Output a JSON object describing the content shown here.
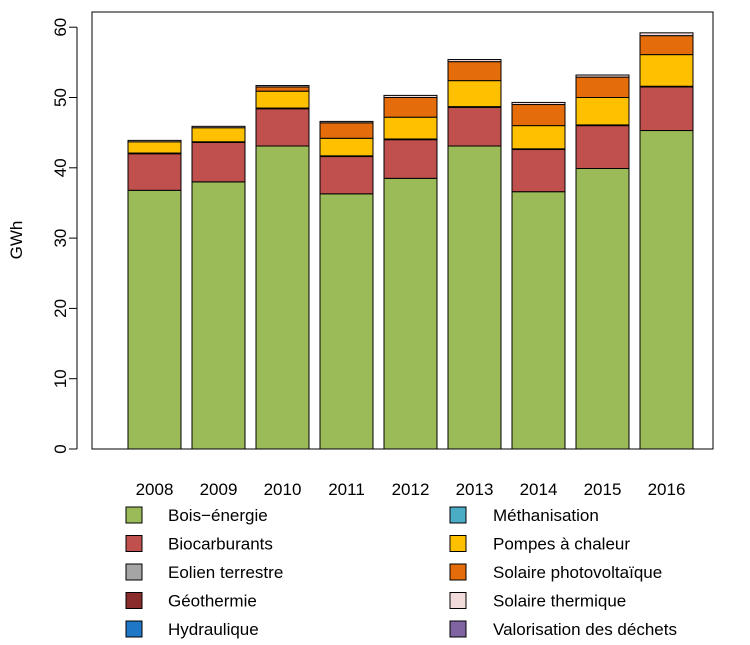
{
  "chart_data": {
    "type": "bar",
    "stacked": true,
    "ylabel": "GWh",
    "xlabel": "",
    "title": "",
    "ylim": [
      0,
      62
    ],
    "yticks": [
      0,
      10,
      20,
      30,
      40,
      50,
      60
    ],
    "categories": [
      "2008",
      "2009",
      "2010",
      "2011",
      "2012",
      "2013",
      "2014",
      "2015",
      "2016"
    ],
    "legend_position": "bottom",
    "series": [
      {
        "name": "Bois−énergie",
        "color": "#9BBB59",
        "values": [
          36.8,
          38.0,
          43.1,
          36.3,
          38.5,
          43.1,
          36.6,
          39.9,
          45.3
        ]
      },
      {
        "name": "Biocarburants",
        "color": "#C0504D",
        "values": [
          5.2,
          5.6,
          5.3,
          5.3,
          5.5,
          5.5,
          6.0,
          6.1,
          6.2
        ]
      },
      {
        "name": "Eolien terrestre",
        "color": "#A5A5A5",
        "values": [
          0,
          0,
          0,
          0,
          0,
          0,
          0,
          0,
          0
        ]
      },
      {
        "name": "Géothermie",
        "color": "#8B2C2C",
        "values": [
          0.1,
          0.1,
          0.1,
          0.1,
          0.1,
          0.1,
          0.1,
          0.1,
          0.1
        ]
      },
      {
        "name": "Hydraulique",
        "color": "#1F77C8",
        "values": [
          0,
          0,
          0,
          0,
          0,
          0,
          0,
          0,
          0
        ]
      },
      {
        "name": "Méthanisation",
        "color": "#4BACC6",
        "values": [
          0,
          0,
          0,
          0,
          0,
          0,
          0,
          0,
          0
        ]
      },
      {
        "name": "Pompes à chaleur",
        "color": "#FFC000",
        "values": [
          1.6,
          2.0,
          2.4,
          2.5,
          3.1,
          3.7,
          3.3,
          3.9,
          4.5
        ]
      },
      {
        "name": "Solaire photovoltaïque",
        "color": "#E46C0A",
        "values": [
          0,
          0,
          0.6,
          2.2,
          2.8,
          2.7,
          3.0,
          2.9,
          2.7
        ]
      },
      {
        "name": "Solaire thermique",
        "color": "#F2DCDB",
        "values": [
          0.2,
          0.2,
          0.2,
          0.2,
          0.3,
          0.3,
          0.3,
          0.3,
          0.4
        ]
      },
      {
        "name": "Valorisation des déchets",
        "color": "#8064A2",
        "values": [
          0,
          0,
          0,
          0,
          0,
          0,
          0,
          0,
          0
        ]
      }
    ]
  }
}
